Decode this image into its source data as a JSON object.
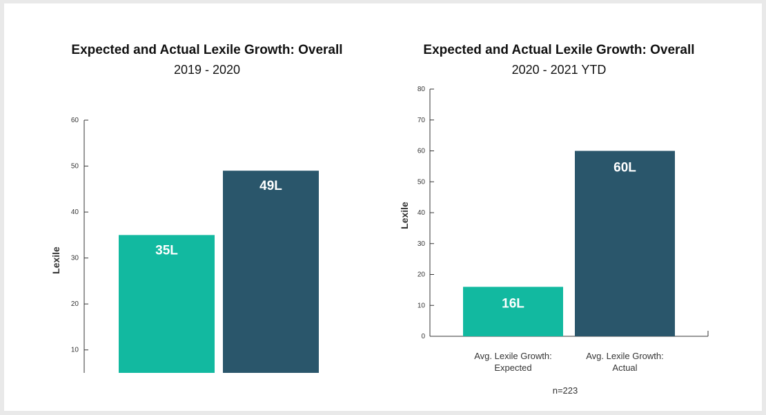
{
  "colors": {
    "expected": "#12b9a0",
    "actual": "#2a566b",
    "axis": "#333333"
  },
  "chart_data": [
    {
      "type": "bar",
      "title": "Expected and Actual Lexile Growth: Overall",
      "subtitle": "2019 - 2020",
      "ylabel": "Lexile",
      "yticks": [
        10,
        20,
        30,
        40,
        50,
        60
      ],
      "ylim": [
        5,
        60
      ],
      "categories": [
        "",
        ""
      ],
      "values": [
        35,
        49
      ],
      "labels": [
        "35L",
        "49L"
      ],
      "x_axis_line": false
    },
    {
      "type": "bar",
      "title": "Expected and Actual Lexile Growth: Overall",
      "subtitle": "2020 - 2021 YTD",
      "ylabel": "Lexile",
      "yticks": [
        0,
        10,
        20,
        30,
        40,
        50,
        60,
        70,
        80
      ],
      "ylim": [
        0,
        80
      ],
      "categories": [
        [
          "Avg. Lexile Growth:",
          "Expected"
        ],
        [
          "Avg. Lexile Growth:",
          "Actual"
        ]
      ],
      "values": [
        16,
        60
      ],
      "labels": [
        "16L",
        "60L"
      ],
      "note": "n=223",
      "x_axis_line": true
    }
  ]
}
